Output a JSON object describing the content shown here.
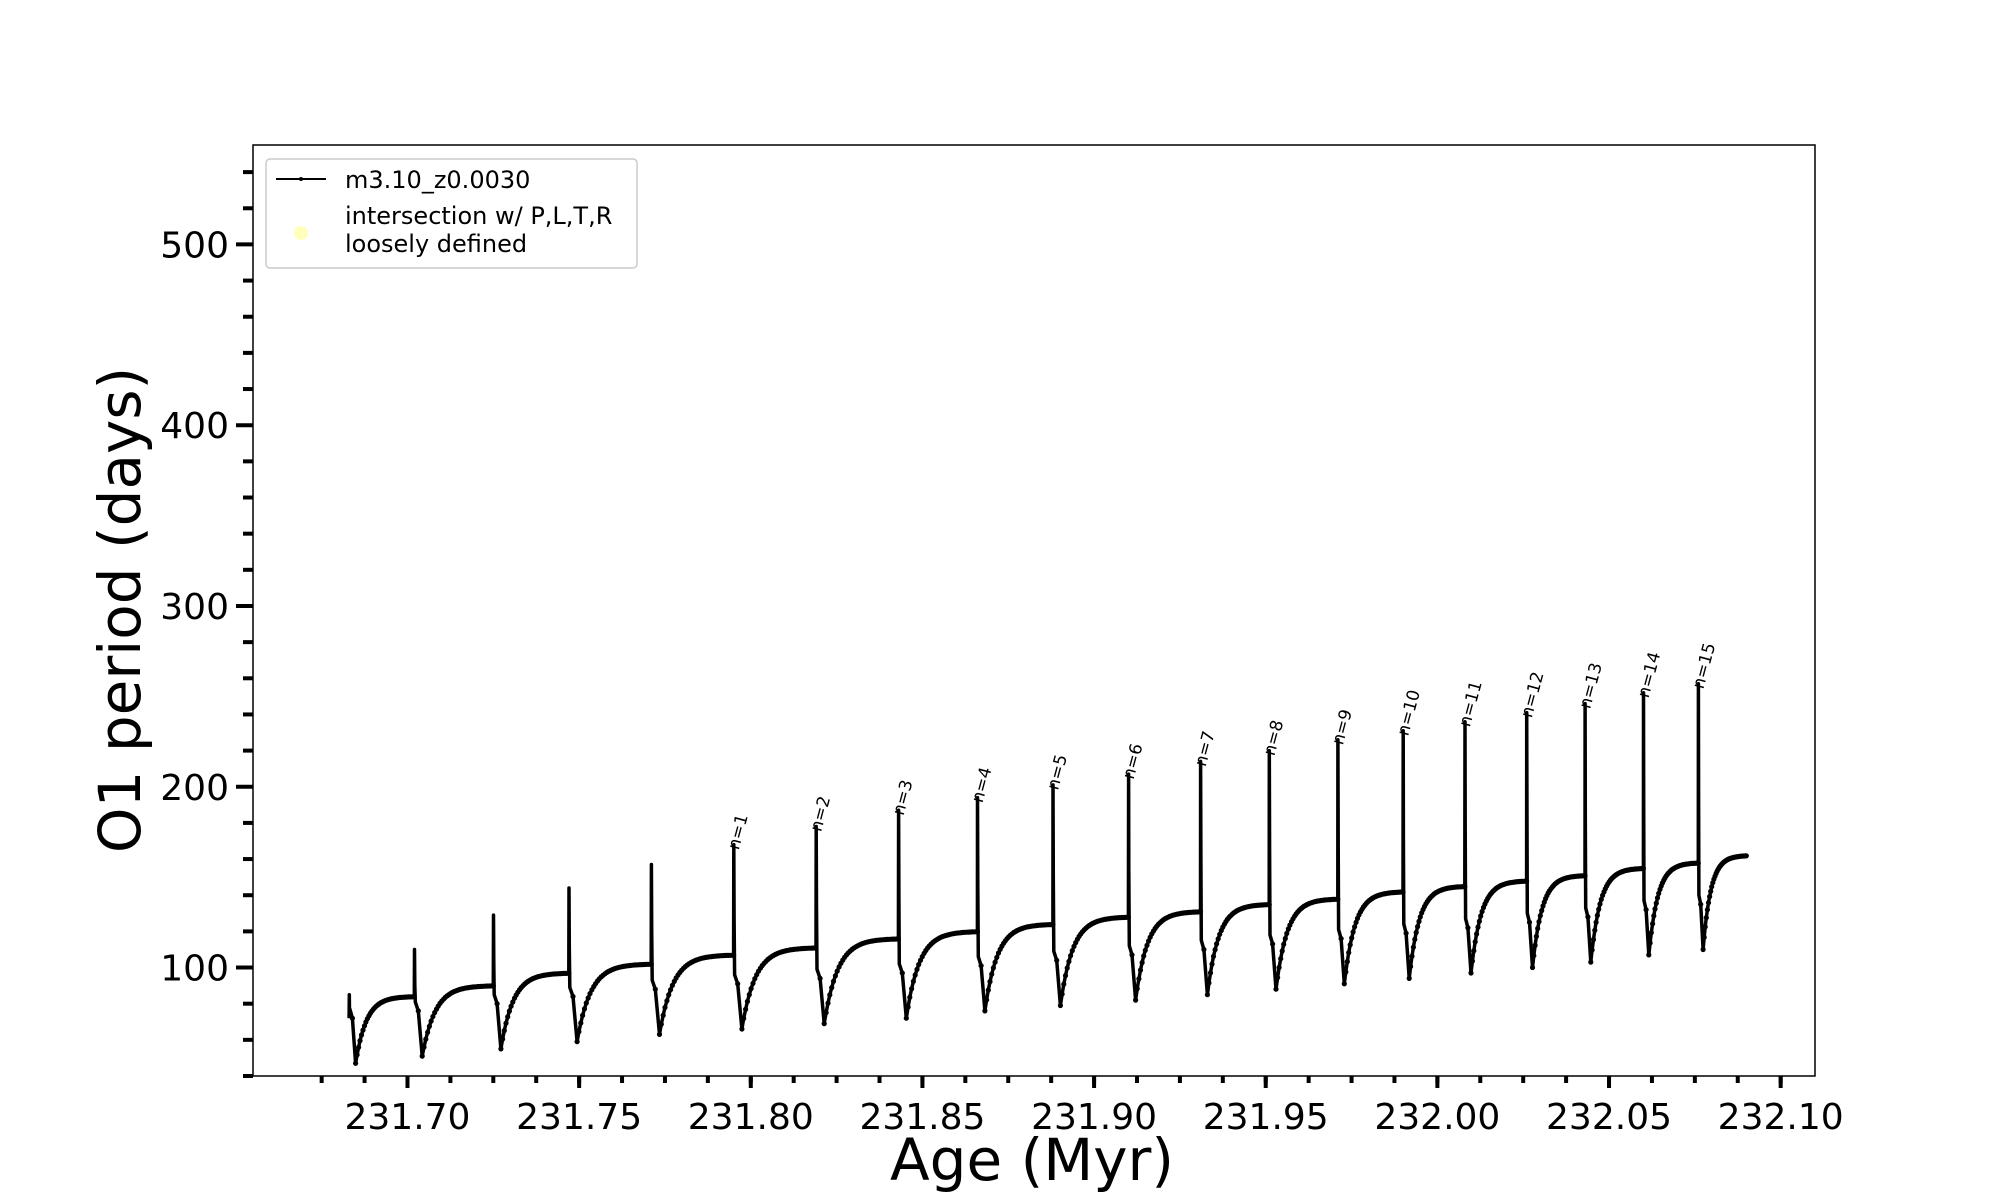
{
  "chart_data": {
    "type": "line",
    "xlabel": "Age (Myr)",
    "ylabel": "O1 period (days)",
    "xlim": [
      231.655,
      232.11
    ],
    "ylim": [
      40,
      555
    ],
    "grid": false,
    "legend_placement": "top-left",
    "colors": {
      "series": "#000000",
      "intersection_marker": "#ffffbb"
    },
    "x_ticks": [
      231.7,
      231.75,
      231.8,
      231.85,
      231.9,
      231.95,
      232.0,
      232.05,
      232.1
    ],
    "x_tick_labels": [
      "231.70",
      "231.75",
      "231.80",
      "231.85",
      "231.90",
      "231.95",
      "232.00",
      "232.05",
      "232.10"
    ],
    "y_ticks": [
      100,
      200,
      300,
      400,
      500
    ],
    "y_tick_labels": [
      "100",
      "200",
      "300",
      "400",
      "500"
    ],
    "series": [
      {
        "name": "m3.10_z0.0030",
        "style": "line-with-points",
        "pulses": [
          {
            "x_start": 231.683,
            "x_end": 231.702,
            "spike": 85,
            "min": 47,
            "plateau": 84
          },
          {
            "x_start": 231.702,
            "x_end": 231.725,
            "spike": 110,
            "min": 51,
            "plateau": 90
          },
          {
            "x_start": 231.725,
            "x_end": 231.747,
            "spike": 129,
            "min": 55,
            "plateau": 97
          },
          {
            "x_start": 231.747,
            "x_end": 231.771,
            "spike": 144,
            "min": 59,
            "plateau": 102
          },
          {
            "x_start": 231.771,
            "x_end": 231.795,
            "spike": 157,
            "min": 63,
            "plateau": 107
          },
          {
            "x_start": 231.795,
            "x_end": 231.819,
            "spike": 168,
            "min": 66,
            "plateau": 111
          },
          {
            "x_start": 231.819,
            "x_end": 231.843,
            "spike": 178,
            "min": 69,
            "plateau": 116
          },
          {
            "x_start": 231.843,
            "x_end": 231.866,
            "spike": 187,
            "min": 72,
            "plateau": 120
          },
          {
            "x_start": 231.866,
            "x_end": 231.888,
            "spike": 194,
            "min": 76,
            "plateau": 124
          },
          {
            "x_start": 231.888,
            "x_end": 231.91,
            "spike": 201,
            "min": 79,
            "plateau": 128
          },
          {
            "x_start": 231.91,
            "x_end": 231.931,
            "spike": 207,
            "min": 82,
            "plateau": 131
          },
          {
            "x_start": 231.931,
            "x_end": 231.951,
            "spike": 214,
            "min": 85,
            "plateau": 135
          },
          {
            "x_start": 231.951,
            "x_end": 231.971,
            "spike": 220,
            "min": 88,
            "plateau": 138
          },
          {
            "x_start": 231.971,
            "x_end": 231.99,
            "spike": 226,
            "min": 91,
            "plateau": 142
          },
          {
            "x_start": 231.99,
            "x_end": 232.008,
            "spike": 231,
            "min": 94,
            "plateau": 145
          },
          {
            "x_start": 232.008,
            "x_end": 232.026,
            "spike": 236,
            "min": 97,
            "plateau": 148
          },
          {
            "x_start": 232.026,
            "x_end": 232.043,
            "spike": 241,
            "min": 100,
            "plateau": 151
          },
          {
            "x_start": 232.043,
            "x_end": 232.06,
            "spike": 246,
            "min": 103,
            "plateau": 155
          },
          {
            "x_start": 232.06,
            "x_end": 232.076,
            "spike": 252,
            "min": 107,
            "plateau": 158
          },
          {
            "x_start": 232.076,
            "x_end": 232.09,
            "spike": 257,
            "min": 110,
            "plateau": 162
          }
        ]
      }
    ],
    "legend": {
      "entries": [
        {
          "label": "m3.10_z0.0030",
          "marker": "line"
        },
        {
          "label": "intersection w/ P,L,T,R\nloosely defined",
          "marker": "circle"
        }
      ]
    },
    "annotations": [
      {
        "text": "n=1",
        "x": 231.795,
        "y": 168
      },
      {
        "text": "n=2",
        "x": 231.819,
        "y": 178
      },
      {
        "text": "n=3",
        "x": 231.843,
        "y": 187
      },
      {
        "text": "n=4",
        "x": 231.866,
        "y": 194
      },
      {
        "text": "n=5",
        "x": 231.888,
        "y": 201
      },
      {
        "text": "n=6",
        "x": 231.91,
        "y": 207
      },
      {
        "text": "n=7",
        "x": 231.931,
        "y": 214
      },
      {
        "text": "n=8",
        "x": 231.951,
        "y": 220
      },
      {
        "text": "n=9",
        "x": 231.971,
        "y": 226
      },
      {
        "text": "n=10",
        "x": 231.99,
        "y": 231
      },
      {
        "text": "n=11",
        "x": 232.008,
        "y": 236
      },
      {
        "text": "n=12",
        "x": 232.026,
        "y": 241
      },
      {
        "text": "n=13",
        "x": 232.043,
        "y": 246
      },
      {
        "text": "n=14",
        "x": 232.06,
        "y": 252
      },
      {
        "text": "n=15",
        "x": 232.076,
        "y": 257
      }
    ]
  }
}
